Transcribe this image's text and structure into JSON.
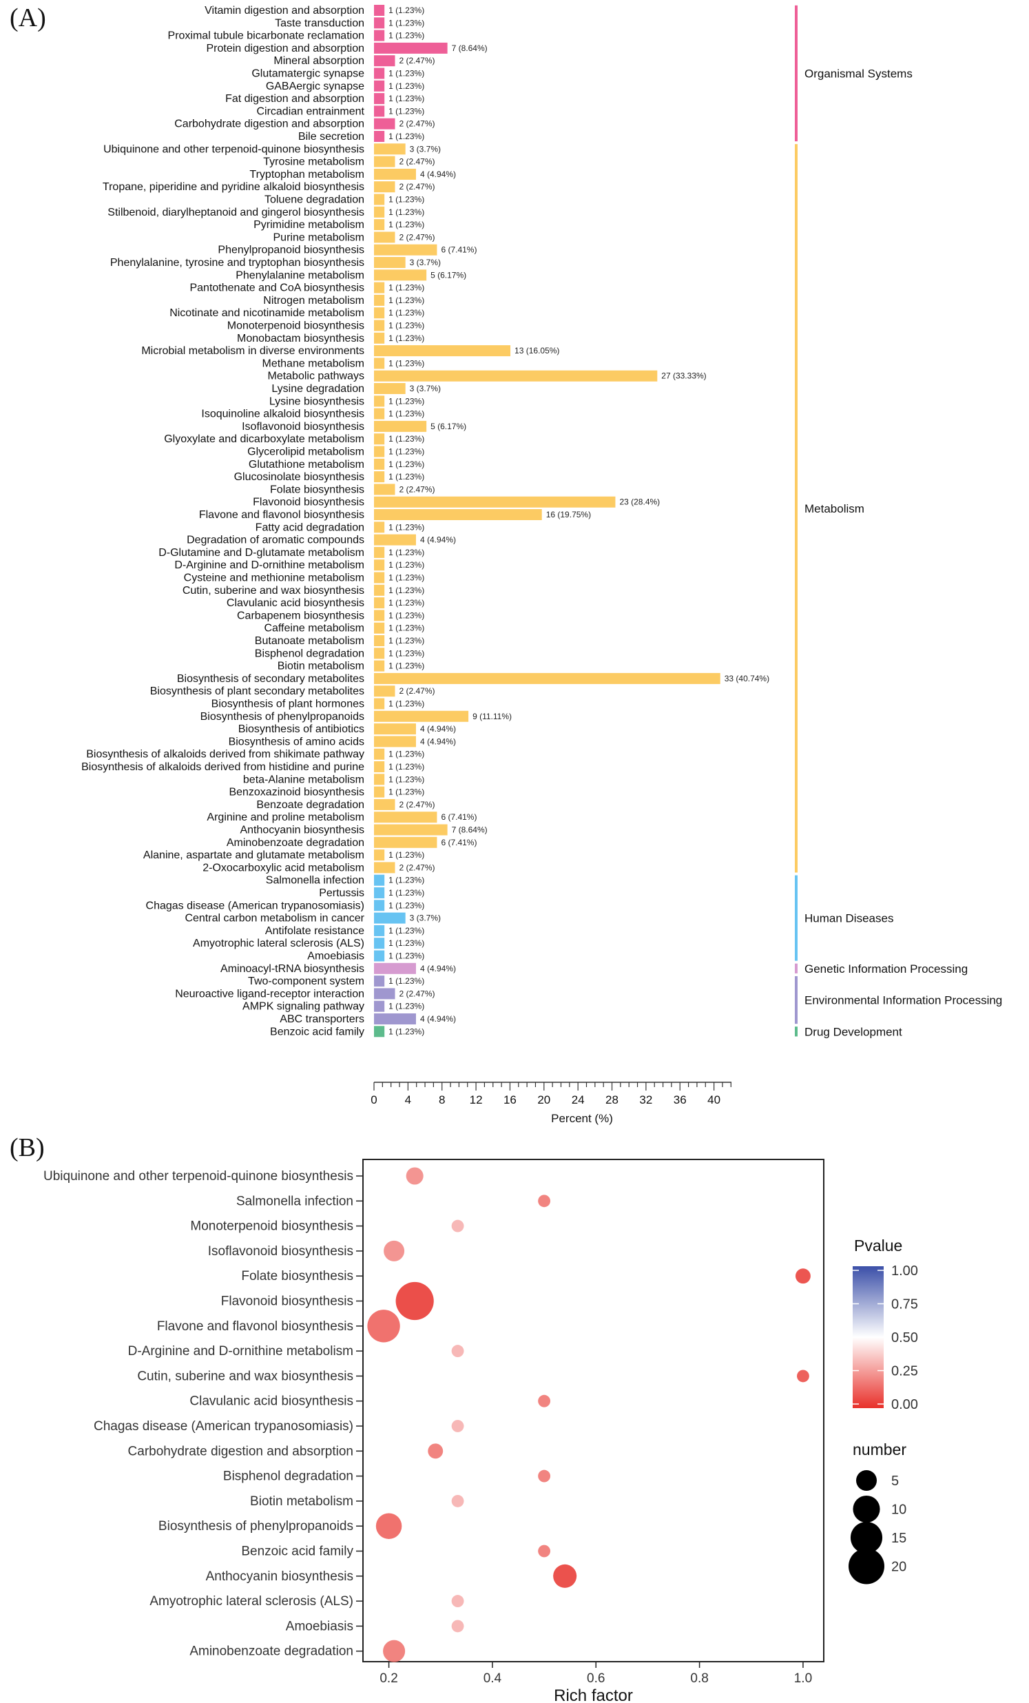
{
  "panels": {
    "a_label": "(A)",
    "b_label": "(B)"
  },
  "colors": {
    "Organismal Systems": "#ee5f97",
    "Metabolism": "#fccb63",
    "Human Diseases": "#67c3f2",
    "Genetic Information Processing": "#d69bd0",
    "Environmental Information Processing": "#9f97cf",
    "Drug Development": "#5dbb8c"
  },
  "chart_data": [
    {
      "type": "bar",
      "orientation": "horizontal",
      "xlabel": "Percent (%)",
      "xlim": [
        0,
        42
      ],
      "xticks": [
        0,
        4,
        8,
        12,
        16,
        20,
        24,
        28,
        32,
        36,
        40
      ],
      "groups": [
        {
          "name": "Organismal Systems",
          "items": [
            {
              "label": "Vitamin digestion and absorption",
              "count": 1,
              "percent": 1.23,
              "text": "1 (1.23%)"
            },
            {
              "label": "Taste transduction",
              "count": 1,
              "percent": 1.23,
              "text": "1 (1.23%)"
            },
            {
              "label": "Proximal tubule bicarbonate reclamation",
              "count": 1,
              "percent": 1.23,
              "text": "1 (1.23%)"
            },
            {
              "label": "Protein digestion and absorption",
              "count": 7,
              "percent": 8.64,
              "text": "7 (8.64%)"
            },
            {
              "label": "Mineral absorption",
              "count": 2,
              "percent": 2.47,
              "text": "2 (2.47%)"
            },
            {
              "label": "Glutamatergic synapse",
              "count": 1,
              "percent": 1.23,
              "text": "1 (1.23%)"
            },
            {
              "label": "GABAergic synapse",
              "count": 1,
              "percent": 1.23,
              "text": "1 (1.23%)"
            },
            {
              "label": "Fat digestion and absorption",
              "count": 1,
              "percent": 1.23,
              "text": "1 (1.23%)"
            },
            {
              "label": "Circadian entrainment",
              "count": 1,
              "percent": 1.23,
              "text": "1 (1.23%)"
            },
            {
              "label": "Carbohydrate digestion and absorption",
              "count": 2,
              "percent": 2.47,
              "text": "2 (2.47%)"
            },
            {
              "label": "Bile secretion",
              "count": 1,
              "percent": 1.23,
              "text": "1 (1.23%)"
            }
          ]
        },
        {
          "name": "Metabolism",
          "items": [
            {
              "label": "Ubiquinone and other terpenoid-quinone biosynthesis",
              "count": 3,
              "percent": 3.7,
              "text": "3 (3.7%)"
            },
            {
              "label": "Tyrosine metabolism",
              "count": 2,
              "percent": 2.47,
              "text": "2 (2.47%)"
            },
            {
              "label": "Tryptophan metabolism",
              "count": 4,
              "percent": 4.94,
              "text": "4 (4.94%)"
            },
            {
              "label": "Tropane, piperidine and pyridine alkaloid biosynthesis",
              "count": 2,
              "percent": 2.47,
              "text": "2 (2.47%)"
            },
            {
              "label": "Toluene degradation",
              "count": 1,
              "percent": 1.23,
              "text": "1 (1.23%)"
            },
            {
              "label": "Stilbenoid, diarylheptanoid and gingerol biosynthesis",
              "count": 1,
              "percent": 1.23,
              "text": "1 (1.23%)"
            },
            {
              "label": "Pyrimidine metabolism",
              "count": 1,
              "percent": 1.23,
              "text": "1 (1.23%)"
            },
            {
              "label": "Purine metabolism",
              "count": 2,
              "percent": 2.47,
              "text": "2 (2.47%)"
            },
            {
              "label": "Phenylpropanoid biosynthesis",
              "count": 6,
              "percent": 7.41,
              "text": "6 (7.41%)"
            },
            {
              "label": "Phenylalanine, tyrosine and tryptophan biosynthesis",
              "count": 3,
              "percent": 3.7,
              "text": "3 (3.7%)"
            },
            {
              "label": "Phenylalanine metabolism",
              "count": 5,
              "percent": 6.17,
              "text": "5 (6.17%)"
            },
            {
              "label": "Pantothenate and CoA biosynthesis",
              "count": 1,
              "percent": 1.23,
              "text": "1 (1.23%)"
            },
            {
              "label": "Nitrogen metabolism",
              "count": 1,
              "percent": 1.23,
              "text": "1 (1.23%)"
            },
            {
              "label": "Nicotinate and nicotinamide metabolism",
              "count": 1,
              "percent": 1.23,
              "text": "1 (1.23%)"
            },
            {
              "label": "Monoterpenoid biosynthesis",
              "count": 1,
              "percent": 1.23,
              "text": "1 (1.23%)"
            },
            {
              "label": "Monobactam biosynthesis",
              "count": 1,
              "percent": 1.23,
              "text": "1 (1.23%)"
            },
            {
              "label": "Microbial metabolism in diverse environments",
              "count": 13,
              "percent": 16.05,
              "text": "13 (16.05%)"
            },
            {
              "label": "Methane metabolism",
              "count": 1,
              "percent": 1.23,
              "text": "1 (1.23%)"
            },
            {
              "label": "Metabolic pathways",
              "count": 27,
              "percent": 33.33,
              "text": "27 (33.33%)"
            },
            {
              "label": "Lysine degradation",
              "count": 3,
              "percent": 3.7,
              "text": "3 (3.7%)"
            },
            {
              "label": "Lysine biosynthesis",
              "count": 1,
              "percent": 1.23,
              "text": "1 (1.23%)"
            },
            {
              "label": "Isoquinoline alkaloid biosynthesis",
              "count": 1,
              "percent": 1.23,
              "text": "1 (1.23%)"
            },
            {
              "label": "Isoflavonoid biosynthesis",
              "count": 5,
              "percent": 6.17,
              "text": "5 (6.17%)"
            },
            {
              "label": "Glyoxylate and dicarboxylate metabolism",
              "count": 1,
              "percent": 1.23,
              "text": "1 (1.23%)"
            },
            {
              "label": "Glycerolipid metabolism",
              "count": 1,
              "percent": 1.23,
              "text": "1 (1.23%)"
            },
            {
              "label": "Glutathione metabolism",
              "count": 1,
              "percent": 1.23,
              "text": "1 (1.23%)"
            },
            {
              "label": "Glucosinolate biosynthesis",
              "count": 1,
              "percent": 1.23,
              "text": "1 (1.23%)"
            },
            {
              "label": "Folate biosynthesis",
              "count": 2,
              "percent": 2.47,
              "text": "2 (2.47%)"
            },
            {
              "label": "Flavonoid biosynthesis",
              "count": 23,
              "percent": 28.4,
              "text": "23 (28.4%)"
            },
            {
              "label": "Flavone and flavonol biosynthesis",
              "count": 16,
              "percent": 19.75,
              "text": "16 (19.75%)"
            },
            {
              "label": "Fatty acid degradation",
              "count": 1,
              "percent": 1.23,
              "text": "1 (1.23%)"
            },
            {
              "label": "Degradation of aromatic compounds",
              "count": 4,
              "percent": 4.94,
              "text": "4 (4.94%)"
            },
            {
              "label": "D-Glutamine and D-glutamate metabolism",
              "count": 1,
              "percent": 1.23,
              "text": "1 (1.23%)"
            },
            {
              "label": "D-Arginine and D-ornithine metabolism",
              "count": 1,
              "percent": 1.23,
              "text": "1 (1.23%)"
            },
            {
              "label": "Cysteine and methionine metabolism",
              "count": 1,
              "percent": 1.23,
              "text": "1 (1.23%)"
            },
            {
              "label": "Cutin, suberine and wax biosynthesis",
              "count": 1,
              "percent": 1.23,
              "text": "1 (1.23%)"
            },
            {
              "label": "Clavulanic acid biosynthesis",
              "count": 1,
              "percent": 1.23,
              "text": "1 (1.23%)"
            },
            {
              "label": "Carbapenem biosynthesis",
              "count": 1,
              "percent": 1.23,
              "text": "1 (1.23%)"
            },
            {
              "label": "Caffeine metabolism",
              "count": 1,
              "percent": 1.23,
              "text": "1 (1.23%)"
            },
            {
              "label": "Butanoate metabolism",
              "count": 1,
              "percent": 1.23,
              "text": "1 (1.23%)"
            },
            {
              "label": "Bisphenol degradation",
              "count": 1,
              "percent": 1.23,
              "text": "1 (1.23%)"
            },
            {
              "label": "Biotin metabolism",
              "count": 1,
              "percent": 1.23,
              "text": "1 (1.23%)"
            },
            {
              "label": "Biosynthesis of secondary metabolites",
              "count": 33,
              "percent": 40.74,
              "text": "33 (40.74%)"
            },
            {
              "label": "Biosynthesis of plant secondary metabolites",
              "count": 2,
              "percent": 2.47,
              "text": "2 (2.47%)"
            },
            {
              "label": "Biosynthesis of plant hormones",
              "count": 1,
              "percent": 1.23,
              "text": "1 (1.23%)"
            },
            {
              "label": "Biosynthesis of phenylpropanoids",
              "count": 9,
              "percent": 11.11,
              "text": "9 (11.11%)"
            },
            {
              "label": "Biosynthesis of antibiotics",
              "count": 4,
              "percent": 4.94,
              "text": "4 (4.94%)"
            },
            {
              "label": "Biosynthesis of amino acids",
              "count": 4,
              "percent": 4.94,
              "text": "4 (4.94%)"
            },
            {
              "label": "Biosynthesis of alkaloids derived from shikimate pathway",
              "count": 1,
              "percent": 1.23,
              "text": "1 (1.23%)"
            },
            {
              "label": "Biosynthesis of alkaloids derived from histidine and purine",
              "count": 1,
              "percent": 1.23,
              "text": "1 (1.23%)"
            },
            {
              "label": "beta-Alanine metabolism",
              "count": 1,
              "percent": 1.23,
              "text": "1 (1.23%)"
            },
            {
              "label": "Benzoxazinoid biosynthesis",
              "count": 1,
              "percent": 1.23,
              "text": "1 (1.23%)"
            },
            {
              "label": "Benzoate degradation",
              "count": 2,
              "percent": 2.47,
              "text": "2 (2.47%)"
            },
            {
              "label": "Arginine and proline metabolism",
              "count": 6,
              "percent": 7.41,
              "text": "6 (7.41%)"
            },
            {
              "label": "Anthocyanin biosynthesis",
              "count": 7,
              "percent": 8.64,
              "text": "7 (8.64%)"
            },
            {
              "label": "Aminobenzoate degradation",
              "count": 6,
              "percent": 7.41,
              "text": "6 (7.41%)"
            },
            {
              "label": "Alanine, aspartate and glutamate metabolism",
              "count": 1,
              "percent": 1.23,
              "text": "1 (1.23%)"
            },
            {
              "label": "2-Oxocarboxylic acid metabolism",
              "count": 2,
              "percent": 2.47,
              "text": "2 (2.47%)"
            }
          ]
        },
        {
          "name": "Human Diseases",
          "items": [
            {
              "label": "Salmonella infection",
              "count": 1,
              "percent": 1.23,
              "text": "1 (1.23%)"
            },
            {
              "label": "Pertussis",
              "count": 1,
              "percent": 1.23,
              "text": "1 (1.23%)"
            },
            {
              "label": "Chagas disease (American trypanosomiasis)",
              "count": 1,
              "percent": 1.23,
              "text": "1 (1.23%)"
            },
            {
              "label": "Central carbon metabolism in cancer",
              "count": 3,
              "percent": 3.7,
              "text": "3 (3.7%)"
            },
            {
              "label": "Antifolate resistance",
              "count": 1,
              "percent": 1.23,
              "text": "1 (1.23%)"
            },
            {
              "label": "Amyotrophic lateral sclerosis (ALS)",
              "count": 1,
              "percent": 1.23,
              "text": "1 (1.23%)"
            },
            {
              "label": "Amoebiasis",
              "count": 1,
              "percent": 1.23,
              "text": "1 (1.23%)"
            }
          ]
        },
        {
          "name": "Genetic Information Processing",
          "items": [
            {
              "label": "Aminoacyl-tRNA biosynthesis",
              "count": 4,
              "percent": 4.94,
              "text": "4 (4.94%)"
            }
          ]
        },
        {
          "name": "Environmental Information Processing",
          "items": [
            {
              "label": "Two-component system",
              "count": 1,
              "percent": 1.23,
              "text": "1 (1.23%)"
            },
            {
              "label": "Neuroactive ligand-receptor interaction",
              "count": 2,
              "percent": 2.47,
              "text": "2 (2.47%)"
            },
            {
              "label": "AMPK signaling pathway",
              "count": 1,
              "percent": 1.23,
              "text": "1 (1.23%)"
            },
            {
              "label": "ABC transporters",
              "count": 4,
              "percent": 4.94,
              "text": "4 (4.94%)"
            }
          ]
        },
        {
          "name": "Drug Development",
          "items": [
            {
              "label": "Benzoic acid family",
              "count": 1,
              "percent": 1.23,
              "text": "1 (1.23%)"
            }
          ]
        }
      ]
    },
    {
      "type": "scatter",
      "xlabel": "Rich factor",
      "xlim": [
        0.15,
        1.04
      ],
      "xticks": [
        0.2,
        0.4,
        0.6,
        0.8,
        1.0
      ],
      "xtick_labels": [
        "0.2",
        "0.4",
        "0.6",
        "0.8",
        "1.0"
      ],
      "categories": [
        "Ubiquinone and other terpenoid-quinone biosynthesis",
        "Salmonella infection",
        "Monoterpenoid biosynthesis",
        "Isoflavonoid biosynthesis",
        "Folate biosynthesis",
        "Flavonoid biosynthesis",
        "Flavone and flavonol biosynthesis",
        "D-Arginine and D-ornithine metabolism",
        "Cutin, suberine and wax biosynthesis",
        "Clavulanic acid biosynthesis",
        "Chagas disease (American trypanosomiasis)",
        "Carbohydrate digestion and absorption",
        "Bisphenol degradation",
        "Biotin metabolism",
        "Biosynthesis of phenylpropanoids",
        "Benzoic acid family",
        "Anthocyanin biosynthesis",
        "Amyotrophic lateral sclerosis (ALS)",
        "Amoebiasis",
        "Aminobenzoate degradation"
      ],
      "points": [
        {
          "rich": 0.25,
          "pvalue": 0.2,
          "number": 3
        },
        {
          "rich": 0.5,
          "pvalue": 0.15,
          "number": 1
        },
        {
          "rich": 0.333,
          "pvalue": 0.3,
          "number": 1
        },
        {
          "rich": 0.21,
          "pvalue": 0.2,
          "number": 5
        },
        {
          "rich": 1.0,
          "pvalue": 0.02,
          "number": 2
        },
        {
          "rich": 0.25,
          "pvalue": 0.0,
          "number": 23
        },
        {
          "rich": 0.19,
          "pvalue": 0.1,
          "number": 16
        },
        {
          "rich": 0.333,
          "pvalue": 0.3,
          "number": 1
        },
        {
          "rich": 1.0,
          "pvalue": 0.05,
          "number": 1
        },
        {
          "rich": 0.5,
          "pvalue": 0.15,
          "number": 1
        },
        {
          "rich": 0.333,
          "pvalue": 0.3,
          "number": 1
        },
        {
          "rich": 0.29,
          "pvalue": 0.15,
          "number": 2
        },
        {
          "rich": 0.5,
          "pvalue": 0.15,
          "number": 1
        },
        {
          "rich": 0.333,
          "pvalue": 0.3,
          "number": 1
        },
        {
          "rich": 0.2,
          "pvalue": 0.1,
          "number": 9
        },
        {
          "rich": 0.5,
          "pvalue": 0.15,
          "number": 1
        },
        {
          "rich": 0.54,
          "pvalue": 0.01,
          "number": 7
        },
        {
          "rich": 0.333,
          "pvalue": 0.3,
          "number": 1
        },
        {
          "rich": 0.333,
          "pvalue": 0.3,
          "number": 1
        },
        {
          "rich": 0.21,
          "pvalue": 0.15,
          "number": 6
        }
      ],
      "color_legend": {
        "title": "Pvalue",
        "range": [
          0,
          1
        ],
        "ticks": [
          "1.00",
          "0.75",
          "0.50",
          "0.25",
          "0.00"
        ],
        "low_color": "#e8302a",
        "mid_color": "#ffffff",
        "high_color": "#3b4fa8"
      },
      "size_legend": {
        "title": "number",
        "values": [
          5,
          10,
          15,
          20
        ],
        "labels": [
          "5",
          "10",
          "15",
          "20"
        ]
      }
    }
  ]
}
